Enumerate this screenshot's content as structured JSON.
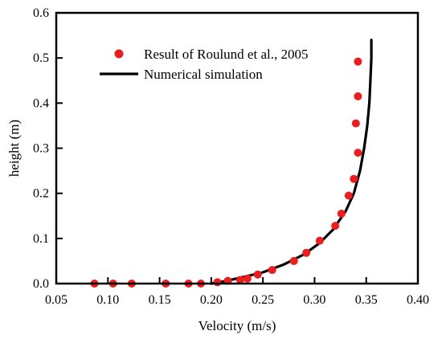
{
  "chart_data": {
    "type": "scatter",
    "xlabel": "Velocity (m/s)",
    "ylabel": "height (m)",
    "xlim": [
      0.05,
      0.4
    ],
    "ylim": [
      0.0,
      0.6
    ],
    "xticks": [
      0.05,
      0.1,
      0.15,
      0.2,
      0.25,
      0.3,
      0.35,
      0.4
    ],
    "xtick_labels": [
      "0.05",
      "0.10",
      "0.15",
      "0.20",
      "0.25",
      "0.30",
      "0.35",
      "0.40"
    ],
    "yticks": [
      0.0,
      0.1,
      0.2,
      0.3,
      0.4,
      0.5,
      0.6
    ],
    "ytick_labels": [
      "0.0",
      "0.1",
      "0.2",
      "0.3",
      "0.4",
      "0.5",
      "0.6"
    ],
    "grid": false,
    "legend_position": "top-center",
    "series": [
      {
        "name": "Result of Roulund et al., 2005",
        "kind": "scatter",
        "color": "#ee1c1c",
        "points": [
          [
            0.087,
            0.0
          ],
          [
            0.105,
            0.0
          ],
          [
            0.123,
            0.0
          ],
          [
            0.156,
            0.0
          ],
          [
            0.178,
            0.0
          ],
          [
            0.19,
            0.0
          ],
          [
            0.206,
            0.003
          ],
          [
            0.216,
            0.006
          ],
          [
            0.228,
            0.008
          ],
          [
            0.235,
            0.011
          ],
          [
            0.245,
            0.02
          ],
          [
            0.259,
            0.03
          ],
          [
            0.28,
            0.05
          ],
          [
            0.292,
            0.068
          ],
          [
            0.305,
            0.095
          ],
          [
            0.32,
            0.128
          ],
          [
            0.326,
            0.155
          ],
          [
            0.333,
            0.195
          ],
          [
            0.338,
            0.232
          ],
          [
            0.34,
            0.355
          ],
          [
            0.342,
            0.29
          ],
          [
            0.342,
            0.415
          ],
          [
            0.342,
            0.492
          ]
        ]
      },
      {
        "name": "Numerical simulation",
        "kind": "line",
        "color": "#000000",
        "points": [
          [
            0.2,
            0.0
          ],
          [
            0.215,
            0.006
          ],
          [
            0.232,
            0.015
          ],
          [
            0.25,
            0.025
          ],
          [
            0.27,
            0.042
          ],
          [
            0.29,
            0.065
          ],
          [
            0.305,
            0.09
          ],
          [
            0.318,
            0.12
          ],
          [
            0.33,
            0.16
          ],
          [
            0.338,
            0.2
          ],
          [
            0.344,
            0.25
          ],
          [
            0.348,
            0.3
          ],
          [
            0.351,
            0.35
          ],
          [
            0.353,
            0.4
          ],
          [
            0.354,
            0.45
          ],
          [
            0.355,
            0.5
          ],
          [
            0.355,
            0.54
          ]
        ]
      }
    ]
  }
}
